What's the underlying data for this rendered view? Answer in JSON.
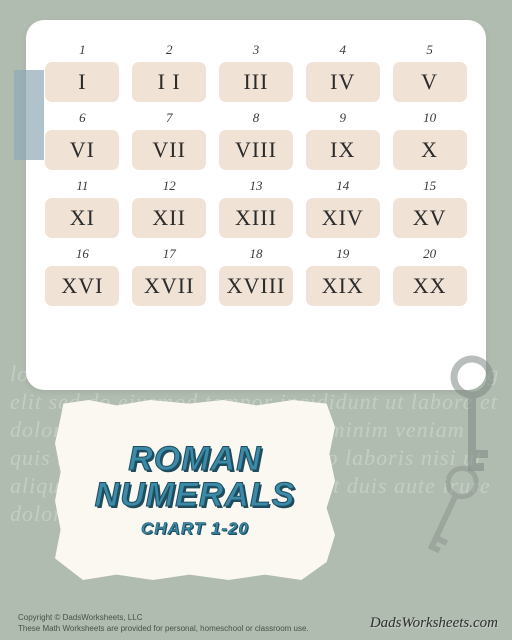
{
  "page": {
    "background_color": "#b1bcb0",
    "card_background": "#ffffff",
    "numeral_box_background": "#f0e2d4",
    "numeral_box_color": "#2b2b2b",
    "arabic_color": "#3a3a3a",
    "tape_color": "#8fa9b8",
    "paper_color": "#fbf8f2",
    "title_fill": "#3b8aa8",
    "title_shadow": "#1f4d5e",
    "key_color": "#7e8986",
    "script_color": "#c4cdc3"
  },
  "chart": {
    "cells": [
      {
        "arabic": "1",
        "roman": "I"
      },
      {
        "arabic": "2",
        "roman": "I I"
      },
      {
        "arabic": "3",
        "roman": "III"
      },
      {
        "arabic": "4",
        "roman": "IV"
      },
      {
        "arabic": "5",
        "roman": "V"
      },
      {
        "arabic": "6",
        "roman": "VI"
      },
      {
        "arabic": "7",
        "roman": "VII"
      },
      {
        "arabic": "8",
        "roman": "VIII"
      },
      {
        "arabic": "9",
        "roman": "IX"
      },
      {
        "arabic": "10",
        "roman": "X"
      },
      {
        "arabic": "11",
        "roman": "XI"
      },
      {
        "arabic": "12",
        "roman": "XII"
      },
      {
        "arabic": "13",
        "roman": "XIII"
      },
      {
        "arabic": "14",
        "roman": "XIV"
      },
      {
        "arabic": "15",
        "roman": "XV"
      },
      {
        "arabic": "16",
        "roman": "XVI"
      },
      {
        "arabic": "17",
        "roman": "XVII"
      },
      {
        "arabic": "18",
        "roman": "XVIII"
      },
      {
        "arabic": "19",
        "roman": "XIX"
      },
      {
        "arabic": "20",
        "roman": "XX"
      }
    ]
  },
  "title": {
    "line1": "ROMAN",
    "line2": "NUMERALS",
    "sub": "CHART 1-20"
  },
  "decor": {
    "script_text": "lorem ipsum dolor sit amet consectetur adipiscing elit sed do eiusmod tempor incididunt ut labore et dolore magna aliqua ut enim ad minim veniam quis nostrud exercitation ullamco laboris nisi ut aliquip ex ea commodo consequat duis aute irure dolor massa"
  },
  "footer": {
    "copyright": "Copyright © DadsWorksheets, LLC",
    "note": "These Math Worksheets are provided for personal, homeschool or classroom use.",
    "site": "DadsWorksheets.com"
  }
}
